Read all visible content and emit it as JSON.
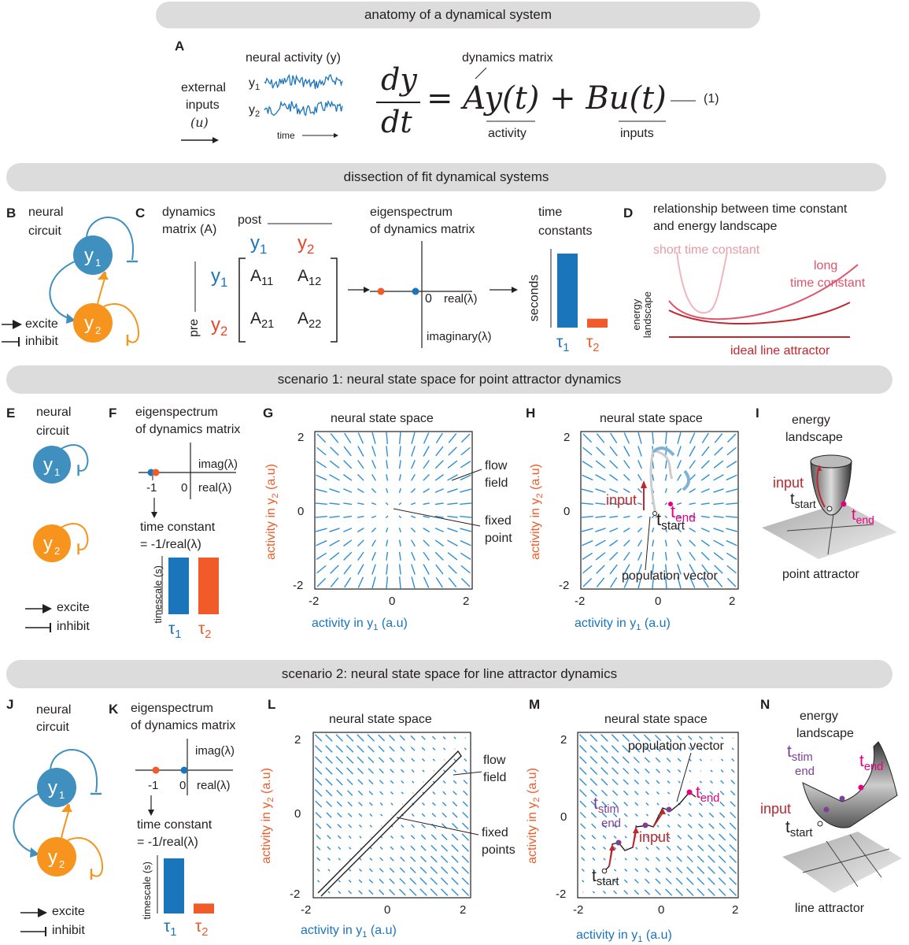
{
  "banners": {
    "top": "anatomy of a dynamical system",
    "dissection": "dissection of fit dynamical systems",
    "scenario1": "scenario 1: neural state space for point attractor dynamics",
    "scenario2": "scenario 2: neural state space for line attractor dynamics"
  },
  "panelA": {
    "label": "A",
    "external_inputs": [
      "external",
      "inputs",
      "(u)"
    ],
    "neural_activity": "neural activity (y)",
    "y1": "y",
    "y2": "y",
    "sub1": "1",
    "sub2": "2",
    "time": "time",
    "dynamics_matrix": "dynamics matrix",
    "activity": "activity",
    "inputs": "inputs",
    "eq_number": "(1)",
    "eq_dy": "dy",
    "eq_dt": "dt",
    "eq_rhs": "= Ay(t) + Bu(t)"
  },
  "panelB": {
    "label": "B",
    "title": [
      "neural",
      "circuit"
    ],
    "excite": "excite",
    "inhibit": "inhibit"
  },
  "panelC": {
    "label": "C",
    "title": [
      "dynamics",
      "matrix (A)"
    ],
    "post": "post",
    "pre": "pre",
    "entries": [
      "A",
      "A",
      "A",
      "A"
    ],
    "entry_subs": [
      "11",
      "12",
      "21",
      "22"
    ],
    "eig_title": [
      "eigenspectrum",
      "of dynamics matrix"
    ],
    "zero": "0",
    "real_axis": "real(λ)",
    "imag_axis": "imaginary(λ)",
    "tc_title": [
      "time",
      "constants"
    ],
    "seconds": "seconds",
    "tau1": "τ",
    "tau2": "τ"
  },
  "panelD": {
    "label": "D",
    "title": [
      "relationship between time constant",
      "and energy landscape"
    ],
    "short": "short time constant",
    "long": [
      "long",
      "time constant"
    ],
    "energy": [
      "energy",
      "landscape"
    ],
    "ideal": "ideal line attractor"
  },
  "panelE": {
    "label": "E",
    "title": [
      "neural",
      "circuit"
    ],
    "excite": "excite",
    "inhibit": "inhibit"
  },
  "panelF": {
    "label": "F",
    "title": [
      "eigenspectrum",
      "of dynamics matrix"
    ],
    "imag": "imag(λ)",
    "real": "real(λ)",
    "minus1": "-1",
    "zero": "0",
    "tc": [
      "time constant",
      "= -1/real(λ)"
    ],
    "timescale": "timescale (s)",
    "values": {
      "tau1": 0.22,
      "tau2": 0.22
    }
  },
  "panelG": {
    "label": "G",
    "title": "neural state space",
    "ticks": [
      "-2",
      "0",
      "2"
    ],
    "xlabel": "activity in y",
    "ylabel": "activity in y",
    "unit": " (a.u)",
    "flow": [
      "flow",
      "field"
    ],
    "fixed": [
      "fixed",
      "point"
    ]
  },
  "panelH": {
    "label": "H",
    "title": "neural state space",
    "ticks": [
      "-2",
      "0",
      "2"
    ],
    "input": "input",
    "t": "t",
    "start": "start",
    "end": "end",
    "popvec": "population vector"
  },
  "panelI": {
    "label": "I",
    "title": [
      "energy",
      "landscape"
    ],
    "input": "input",
    "t": "t",
    "start": "start",
    "end": "end",
    "caption": "point attractor"
  },
  "panelJ": {
    "label": "J",
    "title": [
      "neural",
      "circuit"
    ],
    "excite": "excite",
    "inhibit": "inhibit"
  },
  "panelK": {
    "label": "K",
    "title": [
      "eigenspectrum",
      "of dynamics matrix"
    ],
    "imag": "imag(λ)",
    "real": "real(λ)",
    "minus1": "-1",
    "zero": "0",
    "tc": [
      "time constant",
      "= -1/real(λ)"
    ],
    "timescale": "timescale (s)",
    "values": {
      "tau1": 1.0,
      "tau2": 0.18
    }
  },
  "panelL": {
    "label": "L",
    "title": "neural state space",
    "ticks": [
      "-2",
      "0",
      "2"
    ],
    "flow": [
      "flow",
      "field"
    ],
    "fixed": [
      "fixed",
      "points"
    ]
  },
  "panelM": {
    "label": "M",
    "title": "neural state space",
    "ticks": [
      "-2",
      "0",
      "2"
    ],
    "popvec": "population vector",
    "input": "input",
    "t": "t",
    "stim": "stim",
    "end": "end",
    "start": "start"
  },
  "panelN": {
    "label": "N",
    "title": [
      "energy",
      "landscape"
    ],
    "t": "t",
    "stim": "stim",
    "end": "end",
    "start": "start",
    "input": "input",
    "caption": "line attractor"
  },
  "colors": {
    "blue": "#1b75bb",
    "orange": "#f15a29",
    "node_blue": "#3f8fbf",
    "node_orange": "#f7941d",
    "dark_red": "#c1272d",
    "magenta": "#e6007e",
    "arrow_blue": "#2b8fd6"
  },
  "chart_data": [
    {
      "type": "bar",
      "title": "time constants",
      "ylabel": "seconds",
      "categories": [
        "τ1",
        "τ2"
      ],
      "values": [
        1.0,
        0.12
      ]
    },
    {
      "type": "bar",
      "title": "",
      "ylabel": "timescale (s)",
      "categories": [
        "τ1",
        "τ2"
      ],
      "values": [
        0.22,
        0.22
      ]
    },
    {
      "type": "bar",
      "title": "",
      "ylabel": "timescale (s)",
      "categories": [
        "τ1",
        "τ2"
      ],
      "values": [
        1.0,
        0.18
      ]
    }
  ]
}
